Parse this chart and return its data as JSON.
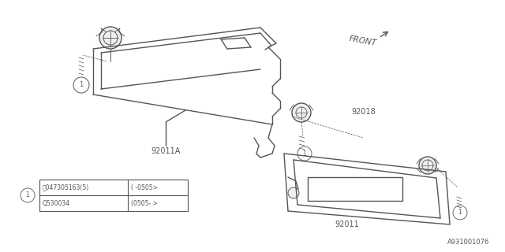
{
  "bg_color": "#ffffff",
  "diagram_id": "A931001076",
  "line_color": "#555555",
  "lw_main": 1.0,
  "lw_thin": 0.6,
  "table_rows": [
    [
      "Ⓢ047305163(5)",
      "( -0505>"
    ],
    [
      "Q530034",
      "(0505- >"
    ]
  ]
}
